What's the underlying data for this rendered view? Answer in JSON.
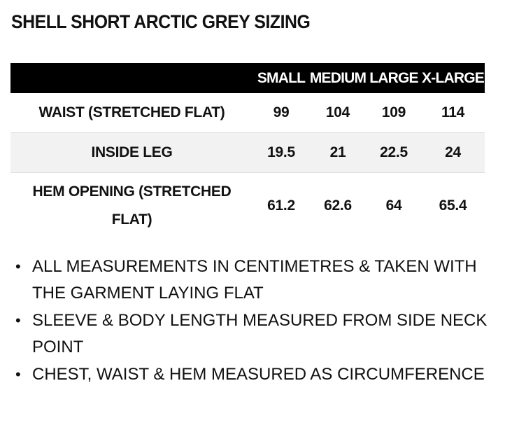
{
  "title": "SHELL SHORT ARCTIC GREY SIZING",
  "table": {
    "headers": [
      "",
      "SMALL",
      "MEDIUM",
      "LARGE",
      "X-LARGE"
    ],
    "rows": [
      {
        "label": "WAIST (STRETCHED FLAT)",
        "values": [
          "99",
          "104",
          "109",
          "114"
        ]
      },
      {
        "label": "INSIDE LEG",
        "values": [
          "19.5",
          "21",
          "22.5",
          "24"
        ]
      },
      {
        "label": "HEM OPENING (STRETCHED FLAT)",
        "values": [
          "61.2",
          "62.6",
          "64",
          "65.4"
        ]
      }
    ]
  },
  "notes": [
    "ALL MEASUREMENTS IN CENTIMETRES & TAKEN WITH THE GARMENT LAYING FLAT",
    "SLEEVE & BODY LENGTH MEASURED FROM SIDE NECK POINT",
    "CHEST, WAIST & HEM MEASURED AS CIRCUMFERENCE"
  ]
}
